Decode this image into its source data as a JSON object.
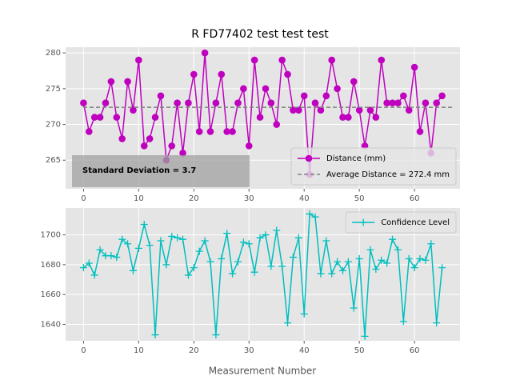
{
  "chart_data": [
    {
      "type": "line",
      "title": "R FD77402 test test test",
      "x": [
        0,
        1,
        2,
        3,
        4,
        5,
        6,
        7,
        8,
        9,
        10,
        11,
        12,
        13,
        14,
        15,
        16,
        17,
        18,
        19,
        20,
        21,
        22,
        23,
        24,
        25,
        26,
        27,
        28,
        29,
        30,
        31,
        32,
        33,
        34,
        35,
        36,
        37,
        38,
        39,
        40,
        41,
        42,
        43,
        44,
        45,
        46,
        47,
        48,
        49,
        50,
        51,
        52,
        53,
        54,
        55,
        56,
        57,
        58,
        59,
        60,
        61,
        62,
        63,
        64,
        65
      ],
      "series": [
        {
          "name": "Distance (mm)",
          "color": "#bf00bf",
          "marker": "o",
          "values": [
            273,
            269,
            271,
            271,
            273,
            276,
            271,
            268,
            276,
            272,
            279,
            267,
            268,
            271,
            274,
            265,
            267,
            273,
            266,
            273,
            277,
            269,
            280,
            269,
            273,
            277,
            269,
            269,
            273,
            275,
            267,
            279,
            271,
            275,
            273,
            270,
            279,
            277,
            272,
            272,
            274,
            263,
            273,
            272,
            274,
            279,
            275,
            271,
            271,
            276,
            272,
            267,
            272,
            271,
            279,
            273,
            273,
            273,
            274,
            272,
            278,
            269,
            273,
            266,
            273,
            274
          ]
        }
      ],
      "average": {
        "name": "Average Distance = 272.4 mm",
        "value": 272.4,
        "color": "#808080"
      },
      "annotation": "Standard Deviation = 3.7",
      "xlim": [
        -3.25,
        68.25
      ],
      "ylim": [
        261,
        280.8
      ],
      "xticks": [
        0,
        10,
        20,
        30,
        40,
        50,
        60
      ],
      "yticks": [
        265,
        270,
        275,
        280
      ],
      "grid": true,
      "legend": "lower right"
    },
    {
      "type": "line",
      "xlabel": "Measurement Number",
      "x": [
        0,
        1,
        2,
        3,
        4,
        5,
        6,
        7,
        8,
        9,
        10,
        11,
        12,
        13,
        14,
        15,
        16,
        17,
        18,
        19,
        20,
        21,
        22,
        23,
        24,
        25,
        26,
        27,
        28,
        29,
        30,
        31,
        32,
        33,
        34,
        35,
        36,
        37,
        38,
        39,
        40,
        41,
        42,
        43,
        44,
        45,
        46,
        47,
        48,
        49,
        50,
        51,
        52,
        53,
        54,
        55,
        56,
        57,
        58,
        59,
        60,
        61,
        62,
        63,
        64,
        65
      ],
      "series": [
        {
          "name": "Confidence Level",
          "color": "#00bfbf",
          "marker": "+",
          "values": [
            1678,
            1681,
            1673,
            1690,
            1686,
            1686,
            1685,
            1697,
            1694,
            1676,
            1691,
            1707,
            1693,
            1633,
            1696,
            1680,
            1699,
            1698,
            1697,
            1673,
            1678,
            1689,
            1696,
            1682,
            1633,
            1684,
            1701,
            1674,
            1682,
            1695,
            1694,
            1675,
            1698,
            1700,
            1679,
            1703,
            1679,
            1641,
            1685,
            1698,
            1647,
            1714,
            1712,
            1674,
            1696,
            1674,
            1682,
            1676,
            1682,
            1651,
            1684,
            1632,
            1690,
            1677,
            1683,
            1681,
            1697,
            1690,
            1642,
            1684,
            1678,
            1684,
            1683,
            1694,
            1641,
            1678
          ]
        }
      ],
      "xlim": [
        -3.25,
        68.25
      ],
      "ylim": [
        1629,
        1718
      ],
      "xticks": [
        0,
        10,
        20,
        30,
        40,
        50,
        60
      ],
      "yticks": [
        1640,
        1660,
        1680,
        1700
      ],
      "grid": true,
      "legend": "upper right"
    }
  ]
}
